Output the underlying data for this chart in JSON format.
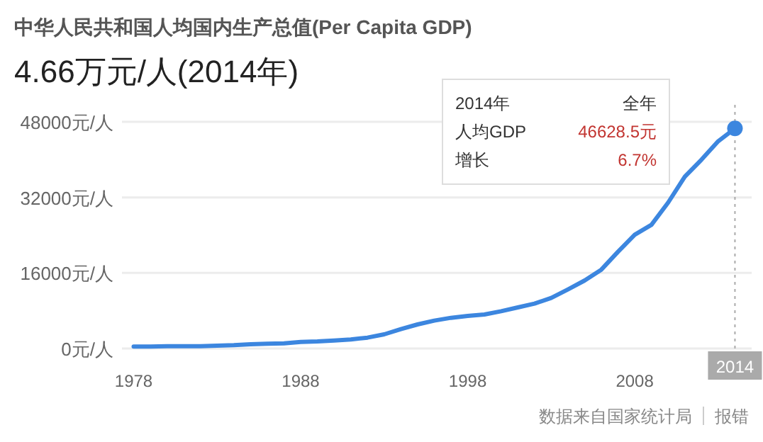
{
  "chart_data": {
    "type": "line",
    "title": "中华人民共和国人均国内生产总值(Per Capita GDP)",
    "subtitle": "4.66万元/人(2014年)",
    "x": [
      1978,
      1979,
      1980,
      1981,
      1982,
      1983,
      1984,
      1985,
      1986,
      1987,
      1988,
      1989,
      1990,
      1991,
      1992,
      1993,
      1994,
      1995,
      1996,
      1997,
      1998,
      1999,
      2000,
      2001,
      2002,
      2003,
      2004,
      2005,
      2006,
      2007,
      2008,
      2009,
      2010,
      2011,
      2012,
      2013,
      2014
    ],
    "series": [
      {
        "color": "#3c86df",
        "values": [
          400,
          400,
          500,
          500,
          500,
          600,
          700,
          900,
          1000,
          1100,
          1400,
          1500,
          1700,
          1900,
          2300,
          3000,
          4100,
          5100,
          5900,
          6500,
          6900,
          7200,
          7900,
          8700,
          9500,
          10700,
          12500,
          14400,
          16700,
          20500,
          24100,
          26200,
          30900,
          36400,
          40000,
          43900,
          46600
        ]
      },
      {
        "type": "scatter",
        "color": "#3c86df",
        "marker": "circle",
        "x": [
          2014
        ],
        "values": [
          46600
        ]
      }
    ],
    "xlim": [
      1977.3,
      2015
    ],
    "ylim": [
      0,
      48000
    ],
    "xticks": [
      1978,
      1988,
      1998,
      2008
    ],
    "yticks": [
      {
        "value": 0,
        "label": "0元/人"
      },
      {
        "value": 16000,
        "label": "16000元/人"
      },
      {
        "value": 32000,
        "label": "32000元/人"
      },
      {
        "value": 48000,
        "label": "48000元/人"
      }
    ],
    "grid": "y",
    "line_style": "solid",
    "ref_lines": [
      {
        "axis": "x",
        "value": 2014,
        "label": "2014",
        "color": "#aaaaaa",
        "line_style": "dotted"
      }
    ],
    "annotations": [
      "2014年",
      "全年",
      "人均GDP",
      "46628.5元",
      "增长",
      "6.7%",
      "数据来自国家统计局",
      "报错"
    ]
  }
}
